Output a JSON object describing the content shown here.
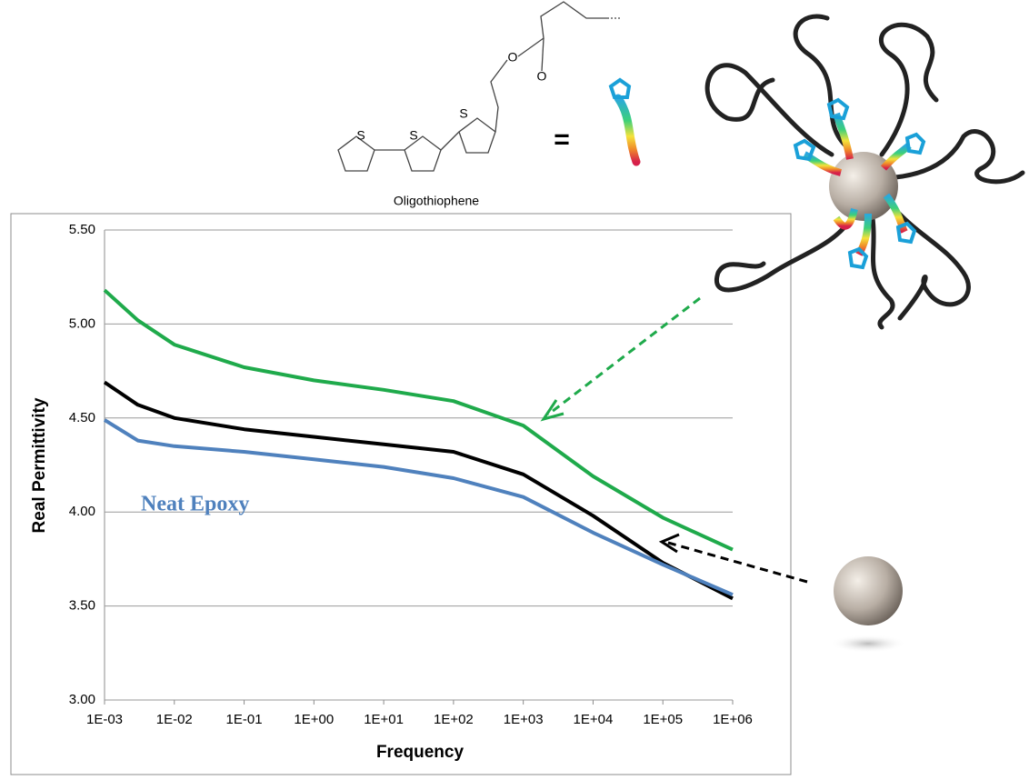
{
  "chart_data": {
    "type": "line",
    "x_label": "Frequency",
    "y_label": "Real Permittivity",
    "x": [
      0.001,
      0.003,
      0.01,
      0.1,
      1,
      10,
      100,
      1000,
      10000,
      100000,
      1000000
    ],
    "log_x": true,
    "xlim": [
      0.001,
      1000000
    ],
    "xticks": [
      {
        "value": 0.001,
        "label": "1E-03"
      },
      {
        "value": 0.01,
        "label": "1E-02"
      },
      {
        "value": 0.1,
        "label": "1E-01"
      },
      {
        "value": 1,
        "label": "1E+00"
      },
      {
        "value": 10,
        "label": "1E+01"
      },
      {
        "value": 100,
        "label": "1E+02"
      },
      {
        "value": 1000,
        "label": "1E+03"
      },
      {
        "value": 10000,
        "label": "1E+04"
      },
      {
        "value": 100000,
        "label": "1E+05"
      },
      {
        "value": 1000000,
        "label": "1E+06"
      }
    ],
    "ylim": [
      3,
      5.5
    ],
    "yticks": [
      {
        "value": 3,
        "label": "3.00"
      },
      {
        "value": 3.5,
        "label": "3.50"
      },
      {
        "value": 4,
        "label": "4.00"
      },
      {
        "value": 4.5,
        "label": "4.50"
      },
      {
        "value": 5,
        "label": "5.00"
      },
      {
        "value": 5.5,
        "label": "5.50"
      }
    ],
    "grid": true,
    "series": [
      {
        "color": "#1faa4b",
        "values": [
          5.18,
          5.02,
          4.89,
          4.77,
          4.7,
          4.65,
          4.59,
          4.46,
          4.19,
          3.97,
          3.8
        ]
      },
      {
        "color": "#000000",
        "values": [
          4.69,
          4.57,
          4.5,
          4.44,
          4.4,
          4.36,
          4.32,
          4.2,
          3.98,
          3.73,
          3.54
        ]
      },
      {
        "name": "Neat Epoxy",
        "color": "#4f81bd",
        "values": [
          4.49,
          4.38,
          4.35,
          4.32,
          4.28,
          4.24,
          4.18,
          4.08,
          3.89,
          3.72,
          3.56
        ]
      }
    ]
  },
  "molecule": {
    "caption": "Oligothiophene",
    "atom_labels": [
      "S",
      "S",
      "S",
      "O",
      "O"
    ],
    "equals": "="
  }
}
